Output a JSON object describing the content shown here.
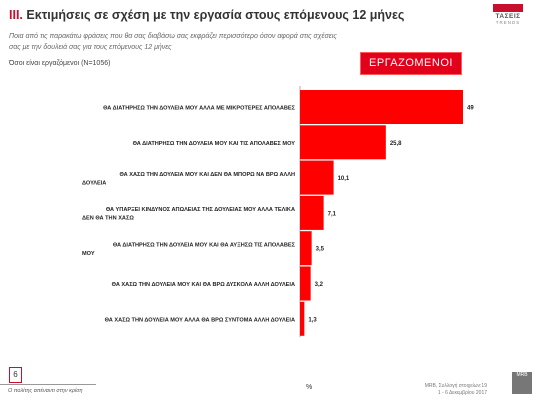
{
  "header": {
    "title_number": "ΙΙΙ.",
    "title_text": "Εκτιμήσεις σε σχέση με την εργασία στους επόμενους 12 μήνες",
    "question": "Ποια από τις παρακάτω φράσεις που θα σας διαβάσω σας εκφράζει περισσότερο όσον αφορά στις σχέσεις σας με την δουλειά σας για τους επόμενους 12 μήνες",
    "base": "Όσοι είναι εργαζόμενοι (N=1056)",
    "segment_badge": "ΕΡΓΑΖΟΜΕΝΟΙ"
  },
  "logo": {
    "name": "ΤΑΣΕΙΣ",
    "sub": "TRENDS"
  },
  "footer": {
    "page_number": "6",
    "footnote": "Ο πολίτης απέναντι στην κρίση",
    "percent_symbol": "%",
    "source_line1": "MRB, Συλλογή στοιχείων:19",
    "source_line2": "1 - 6 Δεκεμβρίου 2017",
    "mrb_logo": "MRB"
  },
  "chart_data": {
    "type": "bar",
    "orientation": "horizontal",
    "categories": [
      "ΘΑ ΔΙΑΤΗΡΗΣΩ ΤΗΝ ΔΟΥΛΕΙΑ ΜΟΥ ΑΛΛΑ ΜΕ ΜΙΚΡΟΤΕΡΕΣ ΑΠΟΛΑΒΕΣ",
      "ΘΑ ΔΙΑΤΗΡΗΣΩ ΤΗΝ ΔΟΥΛΕΙΑ ΜΟΥ ΚΑΙ ΤΙΣ ΑΠΟΛΑΒΕΣ ΜΟΥ",
      "ΘΑ ΧΑΣΩ ΤΗΝ ΔΟΥΛΕΙΑ ΜΟΥ ΚΑΙ ΔΕΝ ΘΑ ΜΠΟΡΩ ΝΑ ΒΡΩ ΑΛΛΗ ΔΟΥΛΕΙΑ",
      "ΘΑ ΥΠΑΡΞΕΙ ΚΙΝΔΥΝΟΣ ΑΠΩΛΕΙΑΣ ΤΗΣ ΔΟΥΛΕΙΑΣ ΜΟΥ ΑΛΛΑ ΤΕΛΙΚΑ ΔΕΝ ΘΑ ΤΗΝ ΧΑΣΩ",
      "ΘΑ ΔΙΑΤΗΡΗΣΩ ΤΗΝ ΔΟΥΛΕΙΑ ΜΟΥ ΚΑΙ ΘΑ ΑΥΞΗΣΩ ΤΙΣ ΑΠΟΛΑΒΕΣ ΜΟΥ",
      "ΘΑ ΧΑΣΩ ΤΗΝ ΔΟΥΛΕΙΑ ΜΟΥ ΚΑΙ ΘΑ ΒΡΩ ΔΥΣΚΟΛΑ ΑΛΛΗ ΔΟΥΛΕΙΑ",
      "ΘΑ ΧΑΣΩ ΤΗΝ ΔΟΥΛΕΙΑ ΜΟΥ ΑΛΛΑ ΘΑ ΒΡΩ ΣΥΝΤΟΜΑ ΑΛΛΗ ΔΟΥΛΕΙΑ"
    ],
    "values": [
      49,
      25.8,
      10.1,
      7.1,
      3.5,
      3.2,
      1.3
    ],
    "value_labels": [
      "49",
      "25,8",
      "10,1",
      "7,1",
      "3,5",
      "3,2",
      "1,3"
    ],
    "xlabel": "%",
    "xlim": [
      0,
      49
    ],
    "bar_color": "#ff0000",
    "grid": false
  }
}
